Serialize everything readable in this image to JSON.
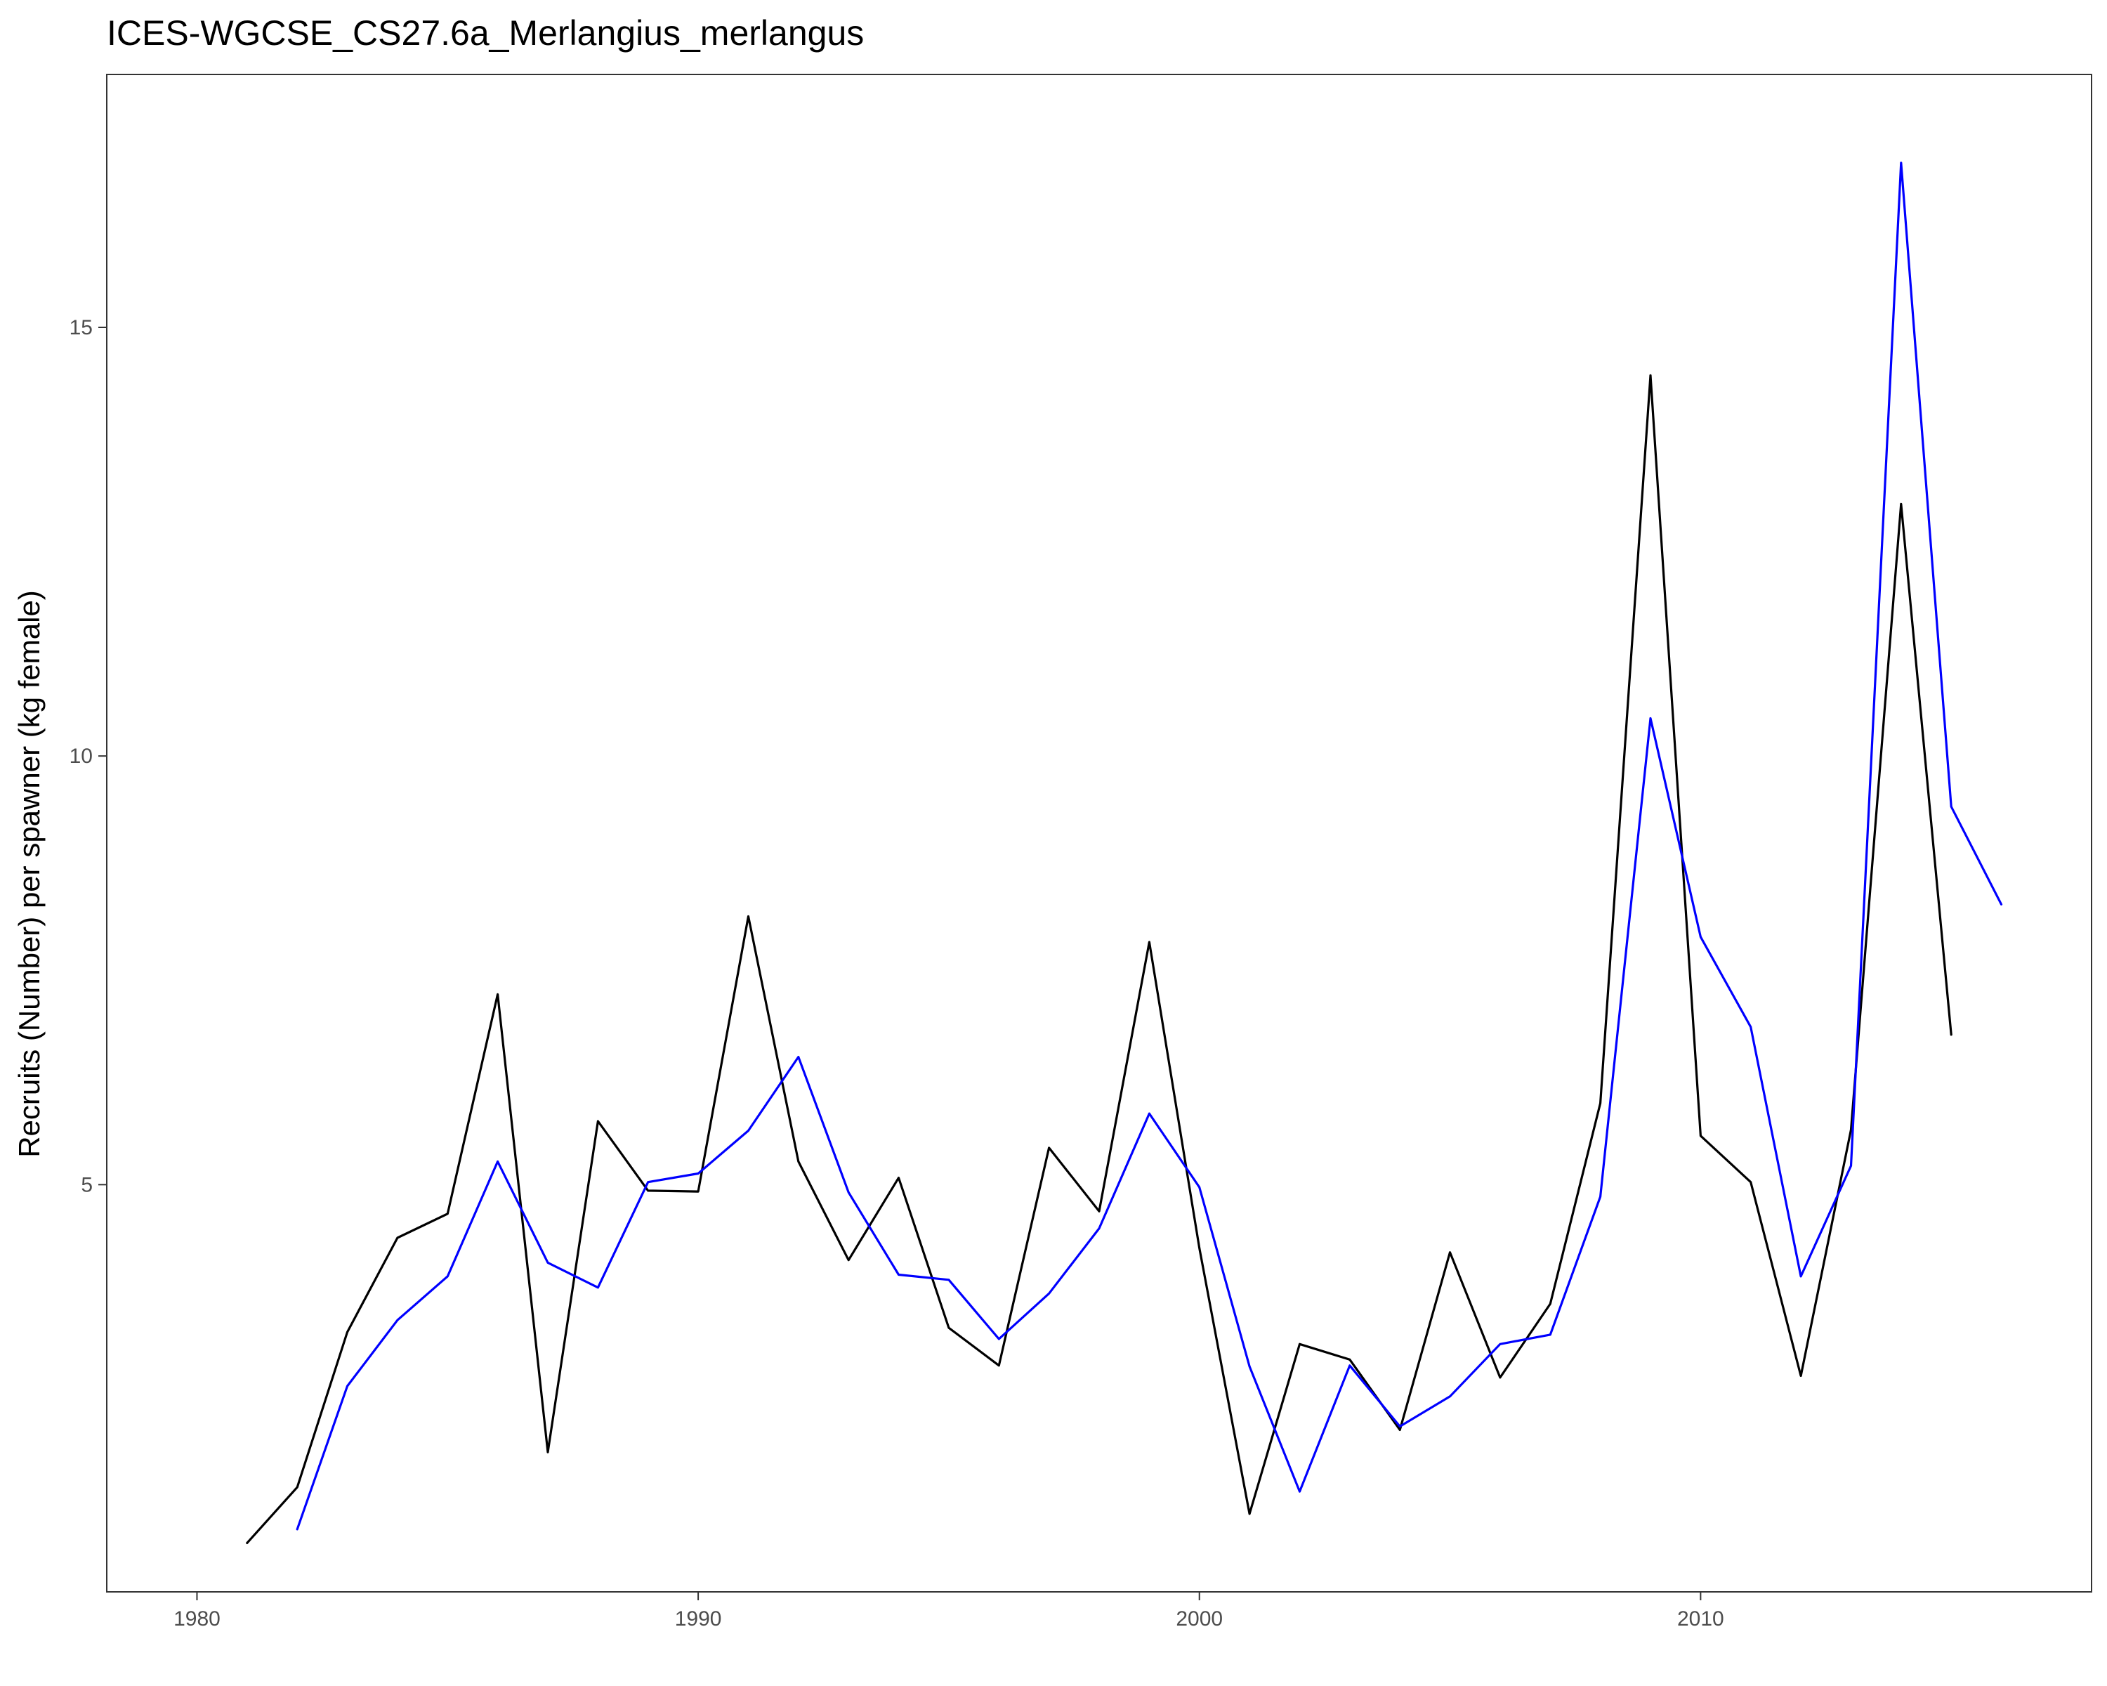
{
  "chart_data": {
    "type": "line",
    "title": "ICES-WGCSE_CS27.6a_Merlangius_merlangus",
    "xlabel": "",
    "ylabel": "Recruits (Number) per spawner (kg female)",
    "xlim": [
      1978.2,
      2017.8
    ],
    "ylim": [
      0.25,
      17.95
    ],
    "x_ticks": [
      1980,
      1990,
      2000,
      2010
    ],
    "y_ticks": [
      5,
      10,
      15
    ],
    "grid": false,
    "legend": "none",
    "series": [
      {
        "color": "#000000",
        "x": [
          1981,
          1982,
          1983,
          1984,
          1985,
          1986,
          1987,
          1988,
          1989,
          1990,
          1991,
          1992,
          1993,
          1994,
          1995,
          1996,
          1997,
          1998,
          1999,
          2000,
          2001,
          2002,
          2003,
          2004,
          2005,
          2006,
          2007,
          2008,
          2009,
          2010,
          2011,
          2012,
          2013,
          2014,
          2015
        ],
        "y": [
          0.82,
          1.47,
          3.28,
          4.38,
          4.66,
          7.22,
          1.88,
          5.74,
          4.93,
          4.92,
          8.13,
          5.27,
          4.12,
          5.08,
          3.33,
          2.89,
          5.43,
          4.69,
          7.83,
          4.26,
          1.16,
          3.14,
          2.96,
          2.14,
          4.21,
          2.75,
          3.61,
          5.95,
          14.44,
          5.57,
          5.03,
          2.77,
          5.64,
          12.94,
          6.75
        ]
      },
      {
        "color": "#0000ff",
        "x": [
          1982,
          1983,
          1984,
          1985,
          1986,
          1987,
          1988,
          1989,
          1990,
          1991,
          1992,
          1993,
          1994,
          1995,
          1996,
          1997,
          1998,
          1999,
          2000,
          2001,
          2002,
          2003,
          2004,
          2005,
          2006,
          2007,
          2008,
          2009,
          2010,
          2011,
          2012,
          2013,
          2014,
          2015,
          2016
        ],
        "y": [
          0.98,
          2.65,
          3.42,
          3.93,
          5.27,
          4.09,
          3.8,
          5.03,
          5.13,
          5.63,
          6.49,
          4.91,
          3.95,
          3.89,
          3.2,
          3.73,
          4.49,
          5.83,
          4.97,
          2.88,
          1.42,
          2.89,
          2.18,
          2.53,
          3.14,
          3.25,
          4.86,
          10.44,
          7.89,
          6.84,
          3.93,
          5.22,
          16.92,
          9.41,
          8.27
        ]
      }
    ]
  }
}
